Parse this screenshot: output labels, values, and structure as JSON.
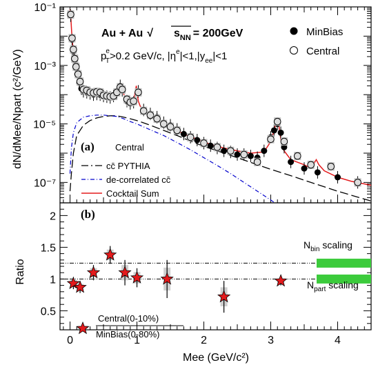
{
  "chart_data": [
    {
      "panel": "(a)",
      "type": "scatter",
      "title": "Au + Au",
      "energy_label": "= 200GeV",
      "sqrt_label": "s",
      "sqrt_sub": "NN",
      "cuts": {
        "pt_pre": "p",
        "pt_sub": "T",
        "pt_sup": "e",
        "pt_cut": ">0.2 GeV/c, |η",
        "eta_sup": "e",
        "eta_mid": "|<1,|y",
        "y_sub": "ee",
        "y_end": "|<1"
      },
      "ylabel": "dN/dMee/Npart (c²/GeV)",
      "yscale": "log",
      "ylim": [
        2e-08,
        0.1
      ],
      "xlim": [
        -0.15,
        4.5
      ],
      "yticks": [
        "10⁻¹",
        "10⁻³",
        "10⁻⁵",
        "10⁻⁷"
      ],
      "legend_top": [
        "MinBias",
        "Central"
      ],
      "legend_bottom_title": "Central",
      "legend_bottom": [
        "cc̄ PYTHIA",
        "de-correlated cc̄",
        "Cocktail Sum"
      ],
      "series": [
        {
          "name": "MinBias",
          "marker": "filled-circle",
          "x": [
            0.01,
            0.03,
            0.05,
            0.07,
            0.09,
            0.11,
            0.14,
            0.17,
            0.2,
            0.25,
            0.3,
            0.35,
            0.4,
            0.45,
            0.5,
            0.55,
            0.6,
            0.65,
            0.7,
            0.75,
            0.78,
            0.85,
            0.9,
            0.95,
            1.02,
            1.1,
            1.2,
            1.3,
            1.4,
            1.5,
            1.6,
            1.7,
            1.8,
            1.9,
            2.0,
            2.1,
            2.2,
            2.3,
            2.4,
            2.5,
            2.6,
            2.7,
            2.8,
            2.9,
            3.0,
            3.05,
            3.1,
            3.15,
            3.2,
            3.3,
            3.5,
            3.7,
            4.0,
            4.3
          ],
          "y": [
            0.05,
            0.0075,
            0.003,
            0.0015,
            0.0008,
            0.0005,
            0.00025,
            0.00016,
            0.00013,
            0.00012,
            0.00011,
            0.0001,
            0.000105,
            0.0001,
            9e-05,
            8.5e-05,
            8e-05,
            9e-05,
            0.00011,
            0.0002,
            0.00014,
            6e-05,
            5e-05,
            5.5e-05,
            0.00013,
            3e-05,
            2.2e-05,
            1.7e-05,
            1.1e-05,
            9e-06,
            6.5e-06,
            4.5e-06,
            3.5e-06,
            2.8e-06,
            2.2e-06,
            1.8e-06,
            1.5e-06,
            1.2e-06,
            1.1e-06,
            9e-07,
            9e-07,
            8e-07,
            7e-07,
            1.2e-06,
            3.5e-06,
            6e-06,
            1e-05,
            5e-06,
            1.6e-06,
            5e-07,
            3e-07,
            2.2e-07,
            1.5e-07,
            1e-07
          ]
        },
        {
          "name": "Central",
          "marker": "open-circle",
          "x": [
            0.01,
            0.03,
            0.05,
            0.07,
            0.09,
            0.12,
            0.15,
            0.2,
            0.25,
            0.3,
            0.35,
            0.4,
            0.45,
            0.5,
            0.55,
            0.6,
            0.65,
            0.7,
            0.75,
            0.78,
            0.85,
            0.9,
            0.95,
            1.02,
            1.1,
            1.2,
            1.3,
            1.4,
            1.5,
            1.6,
            1.8,
            2.0,
            2.2,
            2.4,
            2.6,
            2.8,
            3.0,
            3.1,
            3.2,
            3.4,
            3.6,
            3.9,
            4.3
          ],
          "y": [
            0.055,
            0.0085,
            0.0035,
            0.0017,
            0.0009,
            0.0005,
            0.00028,
            0.00015,
            0.00014,
            0.00012,
            0.000115,
            0.000125,
            0.00012,
            9.5e-05,
            9e-05,
            8.5e-05,
            9e-05,
            0.00012,
            0.00018,
            0.00015,
            7e-05,
            5.5e-05,
            6e-05,
            0.00012,
            2.8e-05,
            2e-05,
            1.5e-05,
            1e-05,
            8e-06,
            6e-06,
            3.5e-06,
            2.2e-06,
            1.6e-06,
            1.2e-06,
            9e-07,
            5e-07,
            3e-06,
            1.2e-05,
            2.5e-06,
            8e-07,
            4e-07,
            3.5e-07,
            1e-07
          ]
        },
        {
          "name": "Cocktail Sum",
          "style": "line",
          "color": "#e31a1c",
          "x": [
            0.0,
            0.01,
            0.03,
            0.05,
            0.08,
            0.12,
            0.2,
            0.3,
            0.4,
            0.5,
            0.6,
            0.7,
            0.74,
            0.77,
            0.79,
            0.8,
            0.82,
            0.86,
            0.9,
            0.95,
            0.99,
            1.02,
            1.05,
            1.1,
            1.2,
            1.3,
            1.5,
            1.7,
            1.9,
            2.1,
            2.3,
            2.5,
            2.7,
            2.9,
            3.0,
            3.05,
            3.08,
            3.1,
            3.12,
            3.15,
            3.2,
            3.3,
            3.5,
            3.6,
            3.68,
            3.72,
            3.8,
            4.0,
            4.2,
            4.5
          ],
          "y": [
            0.08,
            0.05,
            0.008,
            0.003,
            0.0012,
            0.0005,
            0.00018,
            0.00012,
            0.0001,
            9e-05,
            9e-05,
            0.00011,
            0.00018,
            0.0002,
            0.00018,
            0.00012,
            6e-05,
            5e-05,
            5e-05,
            6e-05,
            0.0002,
            6e-05,
            4e-05,
            3e-05,
            2e-05,
            1.4e-05,
            8e-06,
            4.5e-06,
            3e-06,
            2e-06,
            1.5e-06,
            1.2e-06,
            1e-06,
            1.1e-06,
            2.5e-06,
            6e-06,
            1.2e-05,
            1.3e-05,
            9e-06,
            3e-06,
            1.2e-06,
            6e-07,
            4e-07,
            3e-07,
            6e-07,
            4e-07,
            2.5e-07,
            1.5e-07,
            1.1e-07,
            8e-08
          ]
        },
        {
          "name": "cc̄ PYTHIA",
          "style": "long-dash",
          "x": [
            0.0,
            0.02,
            0.05,
            0.1,
            0.2,
            0.3,
            0.4,
            0.5,
            0.6,
            0.7,
            0.8,
            0.9,
            1.0,
            1.2,
            1.4,
            1.6,
            1.8,
            2.0,
            2.2,
            2.5,
            2.8,
            3.0,
            3.3,
            3.6,
            4.0,
            4.5
          ],
          "y": [
            5e-08,
            2e-07,
            1e-06,
            4e-06,
            9e-06,
            1.3e-05,
            1.6e-05,
            1.8e-05,
            1.9e-05,
            1.9e-05,
            1.7e-05,
            1.5e-05,
            1.3e-05,
            9e-06,
            6e-06,
            4e-06,
            2.6e-06,
            1.7e-06,
            1.2e-06,
            7e-07,
            4e-07,
            2.8e-07,
            1.7e-07,
            1e-07,
            5e-08,
            2.3e-08
          ]
        },
        {
          "name": "de-correlated cc̄",
          "style": "dash-dot",
          "color": "#0000cc",
          "x": [
            0.0,
            0.02,
            0.05,
            0.1,
            0.2,
            0.3,
            0.4,
            0.5,
            0.6,
            0.7,
            0.8,
            0.9,
            1.0,
            1.2,
            1.4,
            1.6,
            1.8,
            2.0,
            2.2,
            2.4,
            2.6,
            2.8,
            3.0,
            3.2
          ],
          "y": [
            2e-07,
            1.5e-06,
            5e-06,
            1.1e-05,
            1.7e-05,
            1.9e-05,
            2e-05,
            2e-05,
            1.9e-05,
            1.8e-05,
            1.5e-05,
            1.2e-05,
            1e-05,
            6.3e-06,
            4e-06,
            2.3e-06,
            1.3e-06,
            7e-07,
            3.8e-07,
            2e-07,
            1e-07,
            5e-08,
            2.5e-08,
            1.2e-08
          ]
        }
      ]
    },
    {
      "panel": "(b)",
      "type": "scatter",
      "xlabel": "Mee (GeV/c²)",
      "ylabel": "Ratio",
      "ylim": [
        0.2,
        2.2
      ],
      "xlim": [
        -0.15,
        4.5
      ],
      "yticks": [
        "0.5",
        "1",
        "1.5",
        "2"
      ],
      "xticks": [
        "0",
        "1",
        "2",
        "3",
        "4"
      ],
      "ratio_label": {
        "numerator": "Central(0-10%)",
        "denominator": "MinBias(0-80%)"
      },
      "scaling": {
        "nbin": {
          "pre": "N",
          "sub": "bin",
          "post": " scaling",
          "value": 1.25
        },
        "npart": {
          "pre": "N",
          "sub": "part",
          "post": " scaling",
          "value": 1.0
        }
      },
      "scaling_color": "#3ccb3c",
      "series": [
        {
          "name": "Central(0-10%)/MinBias(0-80%)",
          "marker": "red-star",
          "x": [
            0.05,
            0.15,
            0.35,
            0.6,
            0.82,
            1.0,
            1.45,
            2.3,
            3.15
          ],
          "y": [
            0.93,
            0.87,
            1.1,
            1.38,
            1.1,
            1.02,
            1.0,
            0.72,
            0.97
          ],
          "err": [
            0.09,
            0.09,
            0.12,
            0.14,
            0.2,
            0.15,
            0.3,
            0.25,
            0.07
          ]
        }
      ]
    }
  ]
}
